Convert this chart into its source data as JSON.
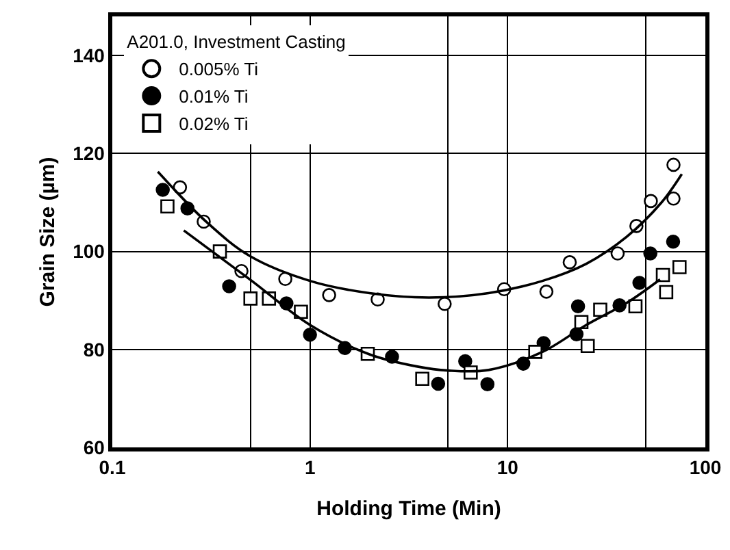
{
  "chart_data": {
    "type": "scatter",
    "xlabel": "Holding Time (Min)",
    "ylabel": "Grain Size (µm)",
    "legend_title": "A201.0, Investment Casting",
    "log": "x",
    "xlim": [
      0.1,
      100
    ],
    "ylim": [
      60,
      148
    ],
    "xticks": [
      0.1,
      {
        "value": 0.5,
        "label": null
      },
      1,
      {
        "value": 5,
        "label": null
      },
      10,
      {
        "value": 50,
        "label": null
      },
      100
    ],
    "yticks": [
      60,
      80,
      100,
      120,
      140
    ],
    "grid": true,
    "legend": "top left",
    "series": [
      {
        "name": "0.005% Ti",
        "color": "#ffffff",
        "marker": "circle",
        "x": [
          0.22,
          0.29,
          0.45,
          0.75,
          1.25,
          2.2,
          4.8,
          9.6,
          15.7,
          20.6,
          36,
          44.8,
          53,
          69,
          69
        ],
        "values": [
          113.1,
          106.1,
          96,
          94.4,
          91.1,
          90.2,
          89.3,
          92.3,
          91.8,
          97.8,
          99.6,
          105.2,
          110.3,
          117.7,
          110.8
        ]
      },
      {
        "name": "0.01% Ti",
        "color": "#000000",
        "marker": "circle",
        "x": [
          0.18,
          0.24,
          0.39,
          0.76,
          1.0,
          1.5,
          2.6,
          4.45,
          6.1,
          7.9,
          12,
          15.2,
          22.7,
          22.3,
          36.8,
          46.4,
          52.7,
          68.7
        ],
        "values": [
          112.6,
          108.8,
          92.9,
          89.4,
          83.0,
          80.3,
          78.5,
          73.0,
          77.6,
          72.9,
          77.1,
          81.3,
          88.8,
          83.1,
          89.0,
          93.6,
          99.6,
          102.0
        ]
      },
      {
        "name": "0.02% Ti",
        "color": "#ffffff",
        "marker": "square",
        "x": [
          0.19,
          0.35,
          0.5,
          0.62,
          0.9,
          1.96,
          3.7,
          6.5,
          13.8,
          23.6,
          25.4,
          29.4,
          44.3,
          61,
          63.4,
          74
        ],
        "values": [
          109.2,
          100,
          90.4,
          90.4,
          87.7,
          79.1,
          74.0,
          75.3,
          79.5,
          85.6,
          80.7,
          88.1,
          88.8,
          95.2,
          91.7,
          96.8
        ]
      },
      {
        "type": "line",
        "color": "#000000",
        "marker": "none",
        "x": [
          0.17,
          0.3,
          0.5,
          1,
          2,
          4,
          8,
          15,
          25,
          40,
          60,
          76
        ],
        "values": [
          116.3,
          106,
          99,
          94,
          91.5,
          90.6,
          91.5,
          94,
          97.5,
          103,
          110,
          115.8
        ]
      },
      {
        "type": "line",
        "color": "#000000",
        "marker": "none",
        "x": [
          0.23,
          0.5,
          1,
          2,
          3.5,
          5,
          8,
          15,
          25,
          40,
          59
        ],
        "values": [
          104.3,
          94.2,
          85,
          79,
          76.5,
          75.7,
          75.8,
          79.5,
          85,
          89.5,
          94.3
        ]
      }
    ]
  }
}
